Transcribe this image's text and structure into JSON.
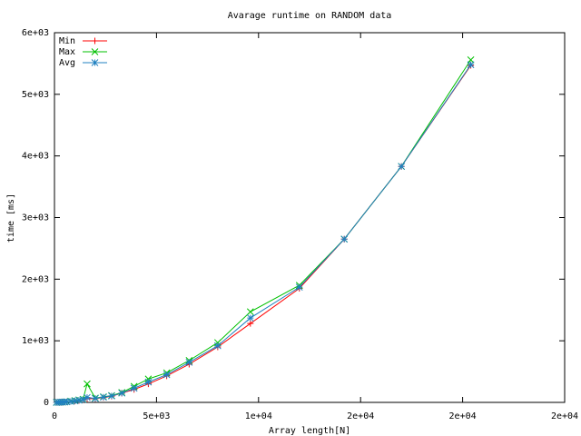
{
  "chart_data": {
    "type": "line",
    "title": "Avarage runtime on RANDOM data",
    "xlabel": "Array length[N]",
    "ylabel": "time [ms]",
    "x": [
      100,
      200,
      300,
      400,
      500,
      600,
      800,
      1000,
      1200,
      1400,
      1600,
      2000,
      2400,
      2800,
      3300,
      3900,
      4600,
      5500,
      6600,
      8000,
      9600,
      12000,
      14200,
      17000,
      20400
    ],
    "series": [
      {
        "name": "Min",
        "color": "#ff0000",
        "marker": "plus",
        "values": [
          0.5,
          1,
          3,
          4,
          7,
          10,
          15,
          20,
          30,
          40,
          60,
          60,
          80,
          100,
          150,
          210,
          300,
          430,
          620,
          900,
          1280,
          1850,
          2650,
          3830,
          5470
        ]
      },
      {
        "name": "Max",
        "color": "#00c000",
        "marker": "cross",
        "values": [
          0.5,
          1,
          3,
          4,
          7,
          10,
          20,
          30,
          40,
          50,
          300,
          70,
          90,
          110,
          160,
          260,
          380,
          480,
          680,
          970,
          1470,
          1900,
          2650,
          3830,
          5560
        ]
      },
      {
        "name": "Avg",
        "color": "#2080c0",
        "marker": "star",
        "values": [
          0.5,
          1,
          3,
          4,
          7,
          10,
          15,
          25,
          35,
          45,
          80,
          65,
          85,
          105,
          150,
          230,
          330,
          450,
          650,
          920,
          1370,
          1870,
          2650,
          3830,
          5480
        ]
      }
    ],
    "xlim": [
      0,
      25000
    ],
    "xticks": [
      0,
      {
        "value": 5000,
        "label": "5e+03"
      },
      {
        "value": 10000,
        "label": "1e+04"
      },
      {
        "value": 15000,
        "label": "2e+04"
      },
      {
        "value": 20000,
        "label": "2e+04"
      },
      {
        "value": 25000,
        "label": "2e+04"
      }
    ],
    "ylim": [
      0,
      6000
    ],
    "yticks": [
      0,
      {
        "value": 1000,
        "label": "1e+03"
      },
      {
        "value": 2000,
        "label": "2e+03"
      },
      {
        "value": 3000,
        "label": "3e+03"
      },
      {
        "value": 4000,
        "label": "4e+03"
      },
      {
        "value": 5000,
        "label": "5e+03"
      },
      {
        "value": 6000,
        "label": "6e+03"
      }
    ],
    "grid": false,
    "legend": "top-left"
  }
}
